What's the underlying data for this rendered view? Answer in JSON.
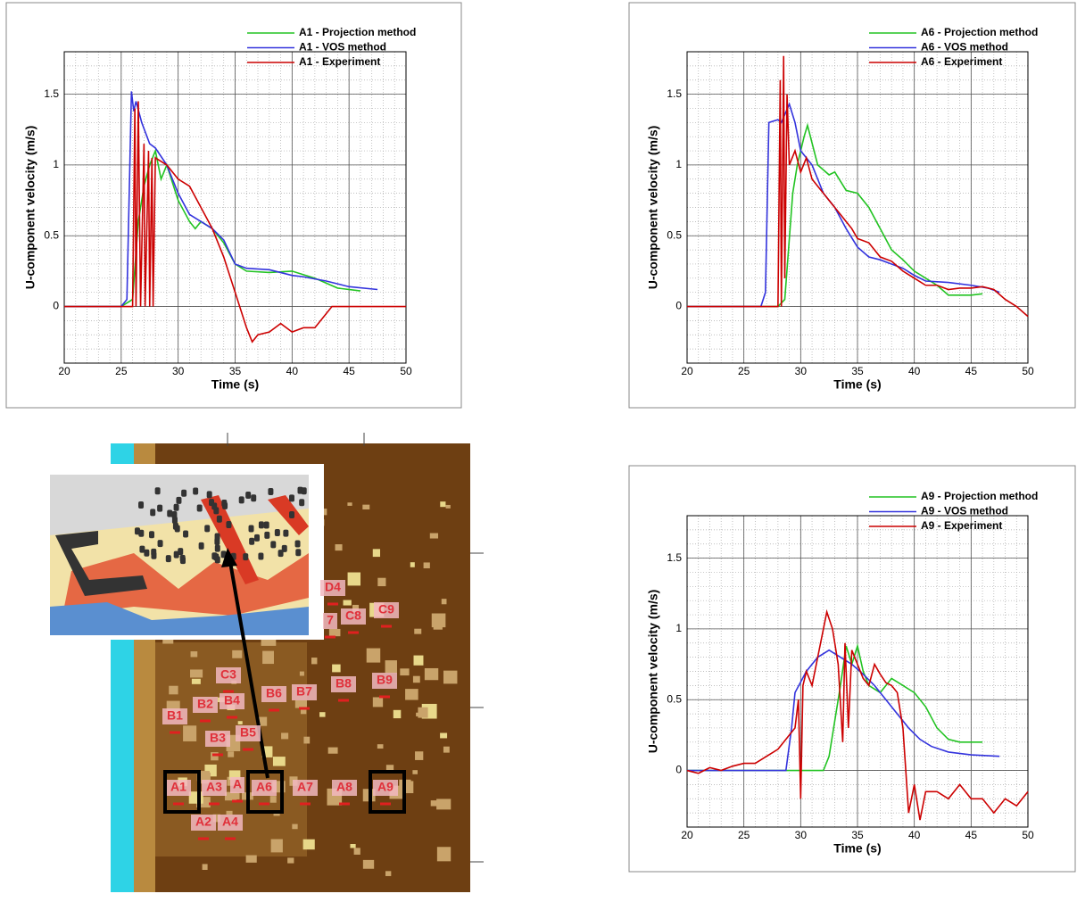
{
  "chart_data": [
    {
      "type": "line",
      "xlabel": "Time (s)",
      "ylabel": "U-component velocity (m/s)",
      "xlim": [
        20,
        50
      ],
      "ylim": [
        -0.4,
        1.8
      ],
      "xticks": [
        20,
        25,
        30,
        35,
        40,
        45,
        50
      ],
      "yticks": [
        0,
        0.5,
        1,
        1.5
      ],
      "grid": true,
      "minor_grid": true,
      "legend": "upper right",
      "series": [
        {
          "name": "A1 - Projection method",
          "color": "#22c322",
          "x": [
            20,
            25,
            26,
            26.5,
            27,
            27.5,
            28,
            28.5,
            29,
            30,
            31,
            31.5,
            32,
            33,
            34,
            35,
            36,
            38,
            40,
            42,
            44,
            46
          ],
          "values": [
            0,
            0,
            0.05,
            0.6,
            0.85,
            1.0,
            1.1,
            0.9,
            1.0,
            0.75,
            0.6,
            0.55,
            0.6,
            0.55,
            0.45,
            0.3,
            0.25,
            0.24,
            0.25,
            0.2,
            0.13,
            0.11
          ]
        },
        {
          "name": "A1 - VOS method",
          "color": "#3333dd",
          "x": [
            20,
            25,
            25.5,
            25.9,
            26.1,
            26.3,
            26.8,
            27.5,
            28,
            29,
            30,
            31,
            32,
            33,
            34,
            35,
            36,
            38,
            40,
            41,
            43,
            45,
            47.5
          ],
          "values": [
            0,
            0,
            0.05,
            1.52,
            1.38,
            1.45,
            1.3,
            1.15,
            1.12,
            1.0,
            0.8,
            0.65,
            0.6,
            0.55,
            0.47,
            0.3,
            0.27,
            0.26,
            0.22,
            0.21,
            0.18,
            0.14,
            0.12
          ]
        },
        {
          "name": "A1 - Experiment",
          "color": "#cc0000",
          "x": [
            20,
            26,
            26.2,
            26.3,
            26.5,
            26.7,
            27,
            27.1,
            27.4,
            27.5,
            27.7,
            27.8,
            28,
            29,
            30,
            31,
            32,
            33,
            34,
            35,
            36,
            36.5,
            37,
            38,
            39,
            40,
            41,
            42,
            43,
            43.5,
            50
          ],
          "values": [
            0,
            0,
            1.4,
            0,
            1.45,
            0,
            1.15,
            0,
            1.1,
            0,
            1.05,
            0,
            1.05,
            1.0,
            0.9,
            0.85,
            0.7,
            0.55,
            0.35,
            0.1,
            -0.15,
            -0.25,
            -0.2,
            -0.18,
            -0.12,
            -0.18,
            -0.15,
            -0.15,
            -0.05,
            0,
            0
          ]
        }
      ]
    },
    {
      "type": "line",
      "xlabel": "Time (s)",
      "ylabel": "U-component velocity (m/s)",
      "xlim": [
        20,
        50
      ],
      "ylim": [
        -0.4,
        1.8
      ],
      "xticks": [
        20,
        25,
        30,
        35,
        40,
        45,
        50
      ],
      "yticks": [
        0,
        0.5,
        1,
        1.5
      ],
      "grid": true,
      "minor_grid": true,
      "legend": "upper right",
      "series": [
        {
          "name": "A6 - Projection method",
          "color": "#22c322",
          "x": [
            20,
            28,
            28.6,
            29.3,
            29.7,
            30.3,
            30.6,
            31.5,
            32.5,
            33,
            34,
            35,
            36,
            37,
            38,
            39,
            40,
            41,
            42,
            43,
            45,
            46
          ],
          "values": [
            0,
            0,
            0.05,
            0.8,
            1.0,
            1.2,
            1.28,
            1.0,
            0.93,
            0.95,
            0.82,
            0.8,
            0.7,
            0.55,
            0.4,
            0.33,
            0.25,
            0.2,
            0.15,
            0.08,
            0.08,
            0.09
          ]
        },
        {
          "name": "A6 - VOS method",
          "color": "#3333dd",
          "x": [
            20,
            26.5,
            26.9,
            27.2,
            28,
            28.3,
            29,
            29.5,
            30,
            31,
            32,
            33,
            34,
            35,
            36,
            37,
            38,
            39,
            40,
            41,
            43,
            45,
            46.5,
            47.5
          ],
          "values": [
            0,
            0,
            0.1,
            1.3,
            1.32,
            1.3,
            1.43,
            1.3,
            1.1,
            1.0,
            0.8,
            0.7,
            0.55,
            0.42,
            0.35,
            0.33,
            0.3,
            0.27,
            0.22,
            0.18,
            0.17,
            0.15,
            0.13,
            0.1
          ]
        },
        {
          "name": "A6 - Experiment",
          "color": "#cc0000",
          "x": [
            20,
            28,
            28.2,
            28.3,
            28.5,
            28.6,
            28.8,
            29,
            29.5,
            30,
            30.5,
            31,
            31.5,
            32,
            32.5,
            33,
            33.5,
            34,
            34.5,
            35,
            36,
            37,
            38,
            39,
            40,
            41,
            42,
            43,
            44,
            45,
            46,
            47,
            48,
            49,
            50
          ],
          "values": [
            0,
            0,
            1.6,
            0,
            1.77,
            0.2,
            1.5,
            1.0,
            1.1,
            0.95,
            1.05,
            0.9,
            0.85,
            0.8,
            0.75,
            0.7,
            0.65,
            0.6,
            0.55,
            0.48,
            0.45,
            0.35,
            0.32,
            0.25,
            0.2,
            0.15,
            0.15,
            0.12,
            0.13,
            0.13,
            0.14,
            0.12,
            0.05,
            0.0,
            -0.07
          ]
        }
      ]
    },
    {
      "type": "line",
      "xlabel": "Time (s)",
      "ylabel": "U-component velocity (m/s)",
      "xlim": [
        20,
        50
      ],
      "ylim": [
        -0.4,
        1.8
      ],
      "xticks": [
        20,
        25,
        30,
        35,
        40,
        45,
        50
      ],
      "yticks": [
        0,
        0.5,
        1,
        1.5
      ],
      "grid": true,
      "minor_grid": true,
      "legend": "upper right",
      "series": [
        {
          "name": "A9 - Projection method",
          "color": "#22c322",
          "x": [
            20,
            29,
            32,
            32.5,
            33.5,
            34,
            34.5,
            35,
            35.5,
            36,
            37,
            38,
            39,
            40,
            41,
            42,
            43,
            44,
            46
          ],
          "values": [
            0,
            0,
            0,
            0.1,
            0.6,
            0.88,
            0.75,
            0.88,
            0.7,
            0.6,
            0.55,
            0.65,
            0.6,
            0.55,
            0.45,
            0.3,
            0.22,
            0.2,
            0.2
          ]
        },
        {
          "name": "A9 - VOS method",
          "color": "#3333dd",
          "x": [
            20,
            28.7,
            29.2,
            29.5,
            30.5,
            31.5,
            32.5,
            33.5,
            34.5,
            35.5,
            36.5,
            37.5,
            38.5,
            39.5,
            40.5,
            41.5,
            43,
            45,
            47.5
          ],
          "values": [
            0,
            0,
            0.3,
            0.55,
            0.7,
            0.8,
            0.85,
            0.8,
            0.75,
            0.68,
            0.6,
            0.5,
            0.4,
            0.3,
            0.22,
            0.17,
            0.13,
            0.11,
            0.1
          ]
        },
        {
          "name": "A9 - Experiment",
          "color": "#cc0000",
          "x": [
            20,
            21,
            22,
            23,
            24,
            25,
            26,
            27,
            28,
            29,
            29.5,
            29.8,
            30,
            30.2,
            30.5,
            31,
            31.5,
            32,
            32.3,
            32.8,
            33.3,
            33.7,
            33.9,
            34.2,
            34.5,
            35,
            35.5,
            36,
            36.5,
            37,
            37.5,
            38,
            38.5,
            39,
            39.5,
            40,
            40.5,
            41,
            42,
            43,
            44,
            45,
            46,
            47,
            48,
            49,
            50
          ],
          "values": [
            0,
            -0.02,
            0.02,
            0,
            0.03,
            0.05,
            0.05,
            0.1,
            0.15,
            0.25,
            0.3,
            0.5,
            -0.2,
            0.6,
            0.7,
            0.6,
            0.8,
            1.0,
            1.12,
            1.0,
            0.75,
            0.2,
            0.9,
            0.3,
            0.85,
            0.75,
            0.65,
            0.6,
            0.75,
            0.68,
            0.62,
            0.6,
            0.55,
            0.3,
            -0.3,
            -0.1,
            -0.35,
            -0.15,
            -0.15,
            -0.2,
            -0.1,
            -0.2,
            -0.2,
            -0.3,
            -0.2,
            -0.25,
            -0.15
          ]
        }
      ]
    }
  ],
  "map": {
    "labels": [
      "A1",
      "A2",
      "A3",
      "A4",
      "A",
      "A6",
      "A7",
      "A8",
      "A9",
      "B1",
      "B2",
      "B3",
      "B4",
      "B5",
      "B6",
      "B7",
      "B8",
      "B9",
      "C3",
      "7",
      "C8",
      "C9",
      "D4"
    ]
  }
}
